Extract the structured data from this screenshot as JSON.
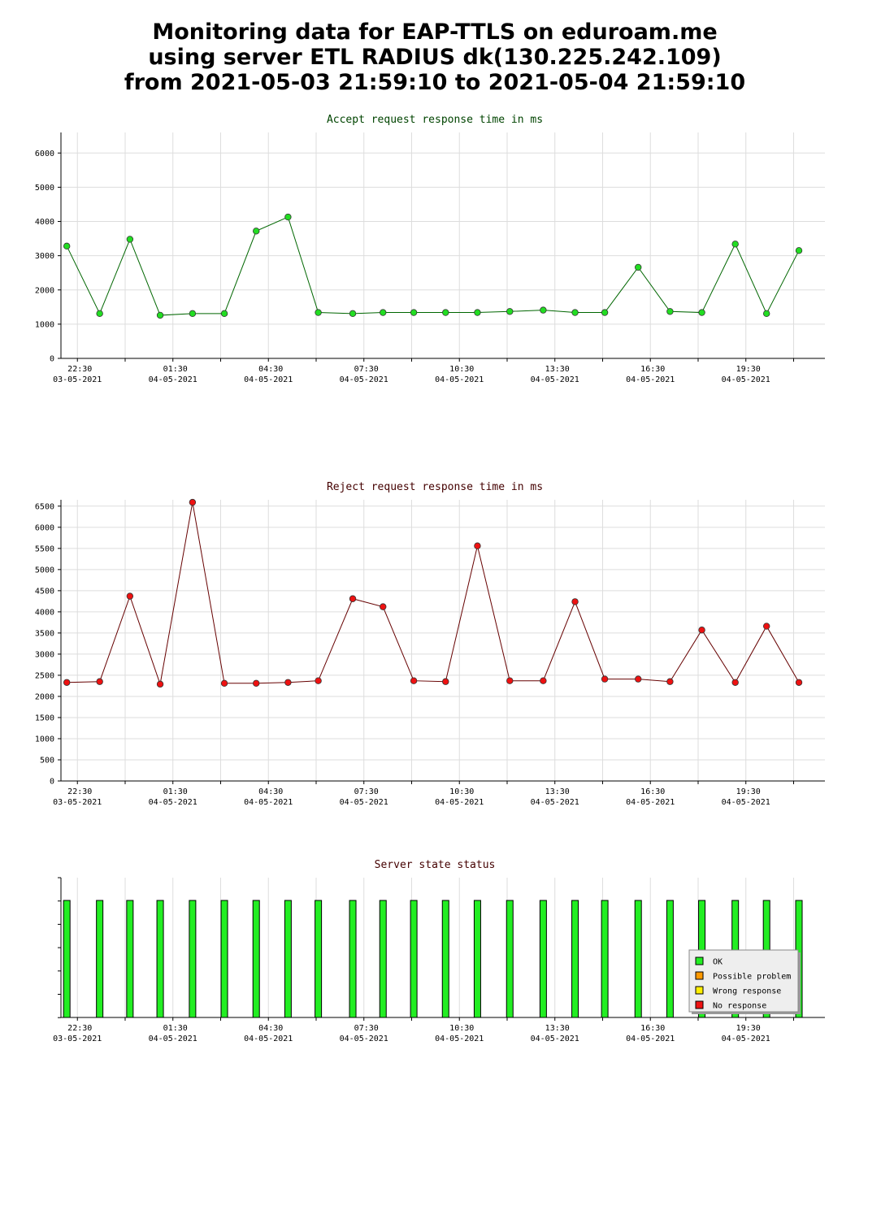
{
  "header": {
    "lines": [
      "Monitoring data for EAP-TTLS on eduroam.me",
      "using server ETL RADIUS dk(130.225.242.109)",
      "from 2021-05-03 21:59:10 to 2021-05-04 21:59:10"
    ]
  },
  "colors": {
    "accept_marker": "#22dd22",
    "accept_line": "#006600",
    "reject_marker": "#ee1111",
    "reject_line": "#660000",
    "title_accept": "#004400",
    "title_reject": "#440000",
    "ok": "#22ee22",
    "possible_problem": "#ff9900",
    "wrong_response": "#ffee00",
    "no_response": "#ee1111"
  },
  "chart_data": [
    {
      "type": "line",
      "title": "Accept request response time in ms",
      "x_range": [
        "2021-05-03 21:59",
        "2021-05-04 21:59"
      ],
      "ylim": [
        0,
        6600
      ],
      "y_ticks": [
        0,
        1000,
        2000,
        3000,
        4000,
        5000,
        6000
      ],
      "x_tick_labels": [
        [
          "22:30",
          "03-05-2021"
        ],
        [
          "01:30",
          "04-05-2021"
        ],
        [
          "04:30",
          "04-05-2021"
        ],
        [
          "07:30",
          "04-05-2021"
        ],
        [
          "10:30",
          "04-05-2021"
        ],
        [
          "13:30",
          "04-05-2021"
        ],
        [
          "16:30",
          "04-05-2021"
        ],
        [
          "19:30",
          "04-05-2021"
        ]
      ],
      "grid": true,
      "series": [
        {
          "x": [
            "2021-05-03 22:10",
            "2021-05-03 23:12",
            "2021-05-04 00:09",
            "2021-05-04 01:06",
            "2021-05-04 02:07",
            "2021-05-04 03:07",
            "2021-05-04 04:07",
            "2021-05-04 05:07",
            "2021-05-04 06:04",
            "2021-05-04 07:09",
            "2021-05-04 08:06",
            "2021-05-04 09:04",
            "2021-05-04 10:04",
            "2021-05-04 11:04",
            "2021-05-04 12:05",
            "2021-05-04 13:08",
            "2021-05-04 14:08",
            "2021-05-04 15:04",
            "2021-05-04 16:07",
            "2021-05-04 17:07",
            "2021-05-04 18:07",
            "2021-05-04 19:10",
            "2021-05-04 20:09",
            "2021-05-04 21:10"
          ],
          "y": [
            3280,
            1310,
            3480,
            1260,
            1310,
            1310,
            3720,
            4130,
            1340,
            1310,
            1340,
            1340,
            1340,
            1340,
            1370,
            1410,
            1340,
            1340,
            2660,
            1370,
            1340,
            3340,
            1310,
            3150
          ]
        }
      ]
    },
    {
      "type": "line",
      "title": "Reject request response time in ms",
      "x_range": [
        "2021-05-03 21:59",
        "2021-05-04 21:59"
      ],
      "ylim": [
        0,
        6650
      ],
      "y_ticks": [
        0,
        500,
        1000,
        1500,
        2000,
        2500,
        3000,
        3500,
        4000,
        4500,
        5000,
        5500,
        6000,
        6500
      ],
      "x_tick_labels": [
        [
          "22:30",
          "03-05-2021"
        ],
        [
          "01:30",
          "04-05-2021"
        ],
        [
          "04:30",
          "04-05-2021"
        ],
        [
          "07:30",
          "04-05-2021"
        ],
        [
          "10:30",
          "04-05-2021"
        ],
        [
          "13:30",
          "04-05-2021"
        ],
        [
          "16:30",
          "04-05-2021"
        ],
        [
          "19:30",
          "04-05-2021"
        ]
      ],
      "grid": true,
      "series": [
        {
          "x": [
            "2021-05-03 22:10",
            "2021-05-03 23:12",
            "2021-05-04 00:09",
            "2021-05-04 01:06",
            "2021-05-04 02:07",
            "2021-05-04 03:07",
            "2021-05-04 04:07",
            "2021-05-04 05:07",
            "2021-05-04 06:04",
            "2021-05-04 07:09",
            "2021-05-04 08:06",
            "2021-05-04 09:04",
            "2021-05-04 10:04",
            "2021-05-04 11:04",
            "2021-05-04 12:05",
            "2021-05-04 13:08",
            "2021-05-04 14:08",
            "2021-05-04 15:04",
            "2021-05-04 16:07",
            "2021-05-04 17:07",
            "2021-05-04 18:07",
            "2021-05-04 19:10",
            "2021-05-04 20:09",
            "2021-05-04 21:10"
          ],
          "y": [
            2330,
            2350,
            4370,
            2290,
            6590,
            2310,
            2310,
            2330,
            2370,
            4310,
            4120,
            2370,
            2350,
            5560,
            2370,
            2370,
            4240,
            2410,
            2410,
            2350,
            3570,
            2330,
            3660,
            2330
          ]
        }
      ]
    },
    {
      "type": "bar",
      "title": "Server state status",
      "x_range": [
        "2021-05-03 21:59",
        "2021-05-04 21:59"
      ],
      "x_tick_labels": [
        [
          "22:30",
          "03-05-2021"
        ],
        [
          "01:30",
          "04-05-2021"
        ],
        [
          "04:30",
          "04-05-2021"
        ],
        [
          "07:30",
          "04-05-2021"
        ],
        [
          "10:30",
          "04-05-2021"
        ],
        [
          "13:30",
          "04-05-2021"
        ],
        [
          "16:30",
          "04-05-2021"
        ],
        [
          "19:30",
          "04-05-2021"
        ]
      ],
      "legend": {
        "placement": "bottom-right",
        "items": [
          {
            "label": "OK",
            "color": "#22ee22"
          },
          {
            "label": "Possible problem",
            "color": "#ff9900"
          },
          {
            "label": "Wrong response",
            "color": "#ffee00"
          },
          {
            "label": "No response",
            "color": "#ee1111"
          }
        ]
      },
      "series": [
        {
          "x": [
            "2021-05-03 22:10",
            "2021-05-03 23:12",
            "2021-05-04 00:09",
            "2021-05-04 01:06",
            "2021-05-04 02:07",
            "2021-05-04 03:07",
            "2021-05-04 04:07",
            "2021-05-04 05:07",
            "2021-05-04 06:04",
            "2021-05-04 07:09",
            "2021-05-04 08:06",
            "2021-05-04 09:04",
            "2021-05-04 10:04",
            "2021-05-04 11:04",
            "2021-05-04 12:05",
            "2021-05-04 13:08",
            "2021-05-04 14:08",
            "2021-05-04 15:04",
            "2021-05-04 16:07",
            "2021-05-04 17:07",
            "2021-05-04 18:07",
            "2021-05-04 19:10",
            "2021-05-04 20:09",
            "2021-05-04 21:10"
          ],
          "states": [
            "OK",
            "OK",
            "OK",
            "OK",
            "OK",
            "OK",
            "OK",
            "OK",
            "OK",
            "OK",
            "OK",
            "OK",
            "OK",
            "OK",
            "OK",
            "OK",
            "OK",
            "OK",
            "OK",
            "OK",
            "OK",
            "OK",
            "OK",
            "OK"
          ]
        }
      ]
    }
  ]
}
